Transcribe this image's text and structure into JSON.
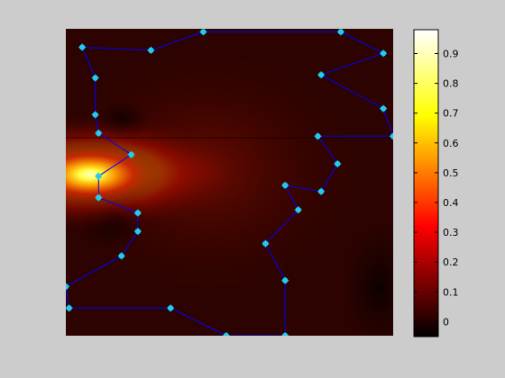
{
  "chart_data": {
    "type": "heatmap",
    "title": "",
    "xlabel": "",
    "ylabel": "",
    "colormap": "hot",
    "colorbar": {
      "range": [
        -0.05,
        0.98
      ],
      "ticks": [
        0,
        0.1,
        0.2,
        0.3,
        0.4,
        0.5,
        0.6,
        0.7,
        0.8,
        0.9
      ],
      "tick_labels": [
        "0",
        "0.1",
        "0.2",
        "0.3",
        "0.4",
        "0.5",
        "0.6",
        "0.7",
        "0.8",
        "0.9"
      ]
    },
    "field_peak": {
      "x": 0.1,
      "y": 0.5,
      "value": 0.98
    },
    "path": {
      "color": "#0000ff",
      "marker_color": "#22ccee",
      "closed": true,
      "points": [
        {
          "x": 0.05,
          "y": 0.94
        },
        {
          "x": 0.26,
          "y": 0.93
        },
        {
          "x": 0.42,
          "y": 0.99
        },
        {
          "x": 0.84,
          "y": 0.99
        },
        {
          "x": 0.97,
          "y": 0.92
        },
        {
          "x": 0.78,
          "y": 0.85
        },
        {
          "x": 0.97,
          "y": 0.74
        },
        {
          "x": 1.0,
          "y": 0.65
        },
        {
          "x": 0.77,
          "y": 0.65
        },
        {
          "x": 0.83,
          "y": 0.56
        },
        {
          "x": 0.78,
          "y": 0.47
        },
        {
          "x": 0.67,
          "y": 0.49
        },
        {
          "x": 0.71,
          "y": 0.41
        },
        {
          "x": 0.61,
          "y": 0.3
        },
        {
          "x": 0.67,
          "y": 0.18
        },
        {
          "x": 0.67,
          "y": 0.0
        },
        {
          "x": 0.49,
          "y": 0.0
        },
        {
          "x": 0.32,
          "y": 0.09
        },
        {
          "x": 0.01,
          "y": 0.09
        },
        {
          "x": 0.0,
          "y": 0.16
        },
        {
          "x": 0.17,
          "y": 0.26
        },
        {
          "x": 0.22,
          "y": 0.34
        },
        {
          "x": 0.22,
          "y": 0.4
        },
        {
          "x": 0.1,
          "y": 0.45
        },
        {
          "x": 0.1,
          "y": 0.52
        },
        {
          "x": 0.2,
          "y": 0.59
        },
        {
          "x": 0.1,
          "y": 0.66
        },
        {
          "x": 0.09,
          "y": 0.72
        },
        {
          "x": 0.09,
          "y": 0.84
        }
      ]
    }
  }
}
